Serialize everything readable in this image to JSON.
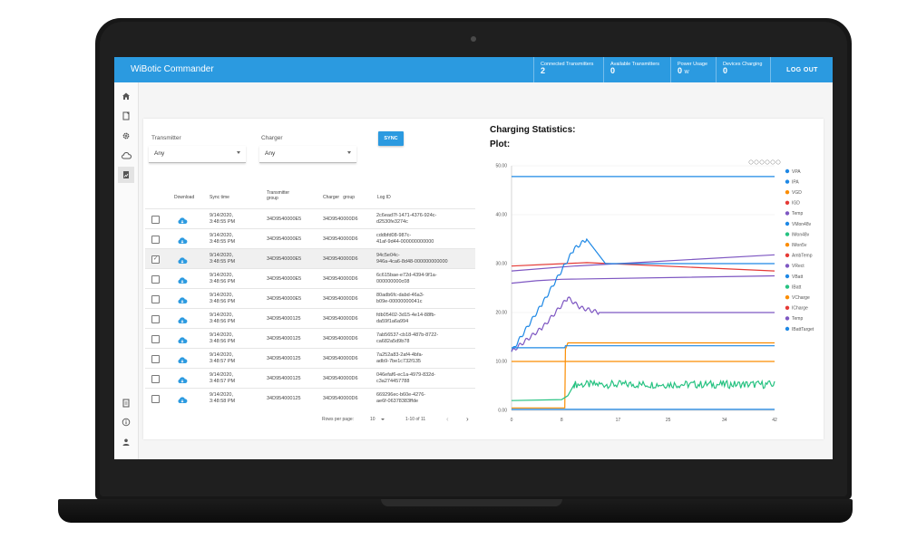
{
  "app": {
    "title": "WiBotic Commander"
  },
  "stats": [
    {
      "label": "Connected Transmitters",
      "value": "2",
      "unit": ""
    },
    {
      "label": "Available Transmitters",
      "value": "0",
      "unit": ""
    },
    {
      "label": "Power Usage",
      "value": "0",
      "unit": "W"
    },
    {
      "label": "Devices Charging",
      "value": "0",
      "unit": ""
    }
  ],
  "logout_label": "LOG OUT",
  "sidebar": {
    "top": [
      "home-icon",
      "document-icon",
      "gear-icon",
      "cloud-icon",
      "chart-doc-icon"
    ],
    "bottom": [
      "file-icon",
      "info-icon",
      "person-icon"
    ],
    "active": "chart-doc-icon"
  },
  "filters": {
    "transmitter": {
      "label": "Transmitter",
      "value": "Any"
    },
    "charger": {
      "label": "Charger",
      "value": "Any"
    },
    "sync_label": "SYNC"
  },
  "table": {
    "headers": {
      "download": "Download",
      "sync_time": "Sync time",
      "transmitter_group": [
        "Transmitter",
        "group"
      ],
      "charger_group": "Charger   group",
      "log_id": "Log ID"
    },
    "rows": [
      {
        "checked": false,
        "time": [
          "9/14/2020,",
          "3:48:55 PM"
        ],
        "tx": "34D9540000E5",
        "ch": "34D9540000D6",
        "log": [
          "2c6ead7f-1471-4376-924c-",
          "d2530fe3274c"
        ]
      },
      {
        "checked": false,
        "time": [
          "9/14/2020,",
          "3:48:55 PM"
        ],
        "tx": "34D9540000E5",
        "ch": "34D9540000D6",
        "log": [
          "cddbfd08-987c-",
          "41af-9d44-000000000000"
        ]
      },
      {
        "checked": true,
        "time": [
          "9/14/2020,",
          "3:48:55 PM"
        ],
        "tx": "34D9540000E5",
        "ch": "34D9540000D6",
        "log": [
          "94c5e04c-",
          "946a-4ca6-8d48-000000000000"
        ]
      },
      {
        "checked": false,
        "time": [
          "9/14/2020,",
          "3:48:56 PM"
        ],
        "tx": "34D9540000E5",
        "ch": "34D9540000D6",
        "log": [
          "6c615bae-e72d-4394-9f1a-",
          "000000000c08"
        ]
      },
      {
        "checked": false,
        "time": [
          "9/14/2020,",
          "3:48:56 PM"
        ],
        "tx": "34D9540000E5",
        "ch": "34D9540000D6",
        "log": [
          "80adb6fc-dabd-46a3-",
          "b09e-00000000041c"
        ]
      },
      {
        "checked": false,
        "time": [
          "9/14/2020,",
          "3:48:56 PM"
        ],
        "tx": "34D954000125",
        "ch": "34D9540000D6",
        "log": [
          "fdb05402-3d15-4e14-88fb-",
          "da59f1a6a994"
        ]
      },
      {
        "checked": false,
        "time": [
          "9/14/2020,",
          "3:48:56 PM"
        ],
        "tx": "34D954000125",
        "ch": "34D9540000D6",
        "log": [
          "7ab56537-cb18-487b-8722-",
          "ca682a5d9b78"
        ]
      },
      {
        "checked": false,
        "time": [
          "9/14/2020,",
          "3:48:57 PM"
        ],
        "tx": "34D954000125",
        "ch": "34D9540000D6",
        "log": [
          "7a252a83-2af4-4bfa-",
          "adb9-7be1c732f135"
        ]
      },
      {
        "checked": false,
        "time": [
          "9/14/2020,",
          "3:48:57 PM"
        ],
        "tx": "34D954000125",
        "ch": "34D9540000D6",
        "log": [
          "046efaf6-ec1a-4979-832d-",
          "c3a274457788"
        ]
      },
      {
        "checked": false,
        "time": [
          "9/14/2020,",
          "3:48:58 PM"
        ],
        "tx": "34D954000125",
        "ch": "34D9540000D6",
        "log": [
          "669296ec-b60e-4276-",
          "ae6f-06378383ffde"
        ]
      }
    ],
    "pagination": {
      "rows_per_page_label": "Rows per page:",
      "rows_per_page": "10",
      "range": "1-10 of 11"
    }
  },
  "chart_data": {
    "type": "line",
    "title": "Charging Statistics:",
    "subtitle": "Plot:",
    "xlim": [
      0,
      42
    ],
    "ylim": [
      0,
      50
    ],
    "xticks": [
      "0",
      "8",
      "17",
      "25",
      "34",
      "42"
    ],
    "yticks": [
      "0.00",
      "10.00",
      "20.00",
      "30.00",
      "40.00",
      "50.00"
    ],
    "legend": {
      "position": "right",
      "entries": [
        {
          "name": "VPA",
          "color": "#1e88e5"
        },
        {
          "name": "IPA",
          "color": "#1e88e5"
        },
        {
          "name": "VGD",
          "color": "#fb8c00"
        },
        {
          "name": "IGD",
          "color": "#e53935"
        },
        {
          "name": "Temp",
          "color": "#7e57c2"
        },
        {
          "name": "VMon48v",
          "color": "#1e88e5"
        },
        {
          "name": "IMon48v",
          "color": "#26c281"
        },
        {
          "name": "IMon5v",
          "color": "#fb8c00"
        },
        {
          "name": "AmbTemp",
          "color": "#e53935"
        },
        {
          "name": "VRect",
          "color": "#7e57c2"
        },
        {
          "name": "VBatt",
          "color": "#1e88e5"
        },
        {
          "name": "IBatt",
          "color": "#26c281"
        },
        {
          "name": "VCharge",
          "color": "#fb8c00"
        },
        {
          "name": "ICharge",
          "color": "#e53935"
        },
        {
          "name": "Temp",
          "color": "#7e57c2"
        },
        {
          "name": "IBattTarget",
          "color": "#1e88e5"
        }
      ]
    },
    "series": [
      {
        "color": "#1e88e5",
        "x": [
          0,
          42
        ],
        "y": [
          47.8,
          47.8
        ]
      },
      {
        "color": "#e53935",
        "x": [
          0,
          12,
          42
        ],
        "y": [
          29.5,
          30.2,
          28.5
        ]
      },
      {
        "color": "#7e57c2",
        "x": [
          0,
          10,
          20,
          42
        ],
        "y": [
          28.5,
          29.5,
          30.2,
          31.8
        ]
      },
      {
        "color": "#7e57c2",
        "x": [
          0,
          4,
          8,
          42
        ],
        "y": [
          26.0,
          26.5,
          26.8,
          27.5
        ]
      },
      {
        "color": "#1e88e5",
        "x": [
          0,
          5,
          10,
          12,
          15,
          42
        ],
        "y": [
          12.0,
          22.0,
          33.0,
          35.0,
          30.0,
          30.0
        ]
      },
      {
        "color": "#7e57c2",
        "x": [
          0,
          5,
          9,
          11,
          14,
          42
        ],
        "y": [
          12.0,
          17.0,
          23.0,
          21.0,
          20.0,
          20.0
        ]
      },
      {
        "color": "#fb8c00",
        "x": [
          0,
          9,
          9,
          42
        ],
        "y": [
          10.0,
          10.0,
          10.0,
          10.0
        ]
      },
      {
        "color": "#fb8c00",
        "x": [
          0,
          8.5,
          8.6,
          9,
          42
        ],
        "y": [
          0.5,
          0.5,
          12.5,
          13.8,
          13.8
        ]
      },
      {
        "color": "#1e88e5",
        "x": [
          0,
          8.5,
          8.6,
          42
        ],
        "y": [
          12.8,
          12.8,
          13.2,
          13.2
        ]
      },
      {
        "color": "#26c281",
        "x": [
          0,
          8,
          9,
          10,
          42
        ],
        "y": [
          2.0,
          2.2,
          3.0,
          5.5,
          5.5
        ]
      },
      {
        "color": "#1e88e5",
        "x": [
          0,
          42
        ],
        "y": [
          0.2,
          0.2
        ]
      }
    ]
  }
}
